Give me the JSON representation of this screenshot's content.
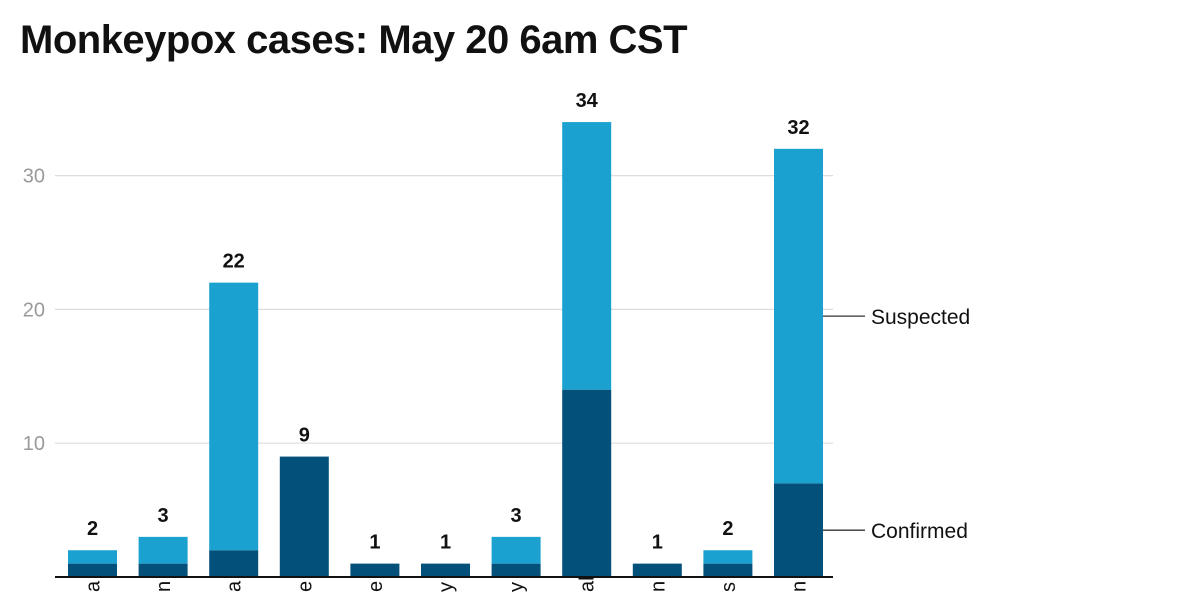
{
  "chart_data": {
    "type": "bar",
    "stacked": true,
    "title": "Monkeypox cases: May 20 6am CST",
    "categories": [
      "a",
      "n",
      "a",
      "e",
      "e",
      "y",
      "y",
      "al",
      "n",
      "s",
      "n"
    ],
    "series": [
      {
        "name": "Confirmed",
        "color": "#03507a",
        "values": [
          1,
          1,
          2,
          9,
          1,
          1,
          1,
          14,
          1,
          1,
          7
        ]
      },
      {
        "name": "Suspected",
        "color": "#1aa1cf",
        "values": [
          1,
          2,
          20,
          0,
          0,
          0,
          2,
          20,
          0,
          1,
          25
        ]
      }
    ],
    "totals": [
      2,
      3,
      22,
      9,
      1,
      1,
      3,
      34,
      1,
      2,
      32
    ],
    "yticks": [
      10,
      20,
      30
    ],
    "ylim": [
      0,
      36
    ],
    "grid": true,
    "legend": "right"
  }
}
